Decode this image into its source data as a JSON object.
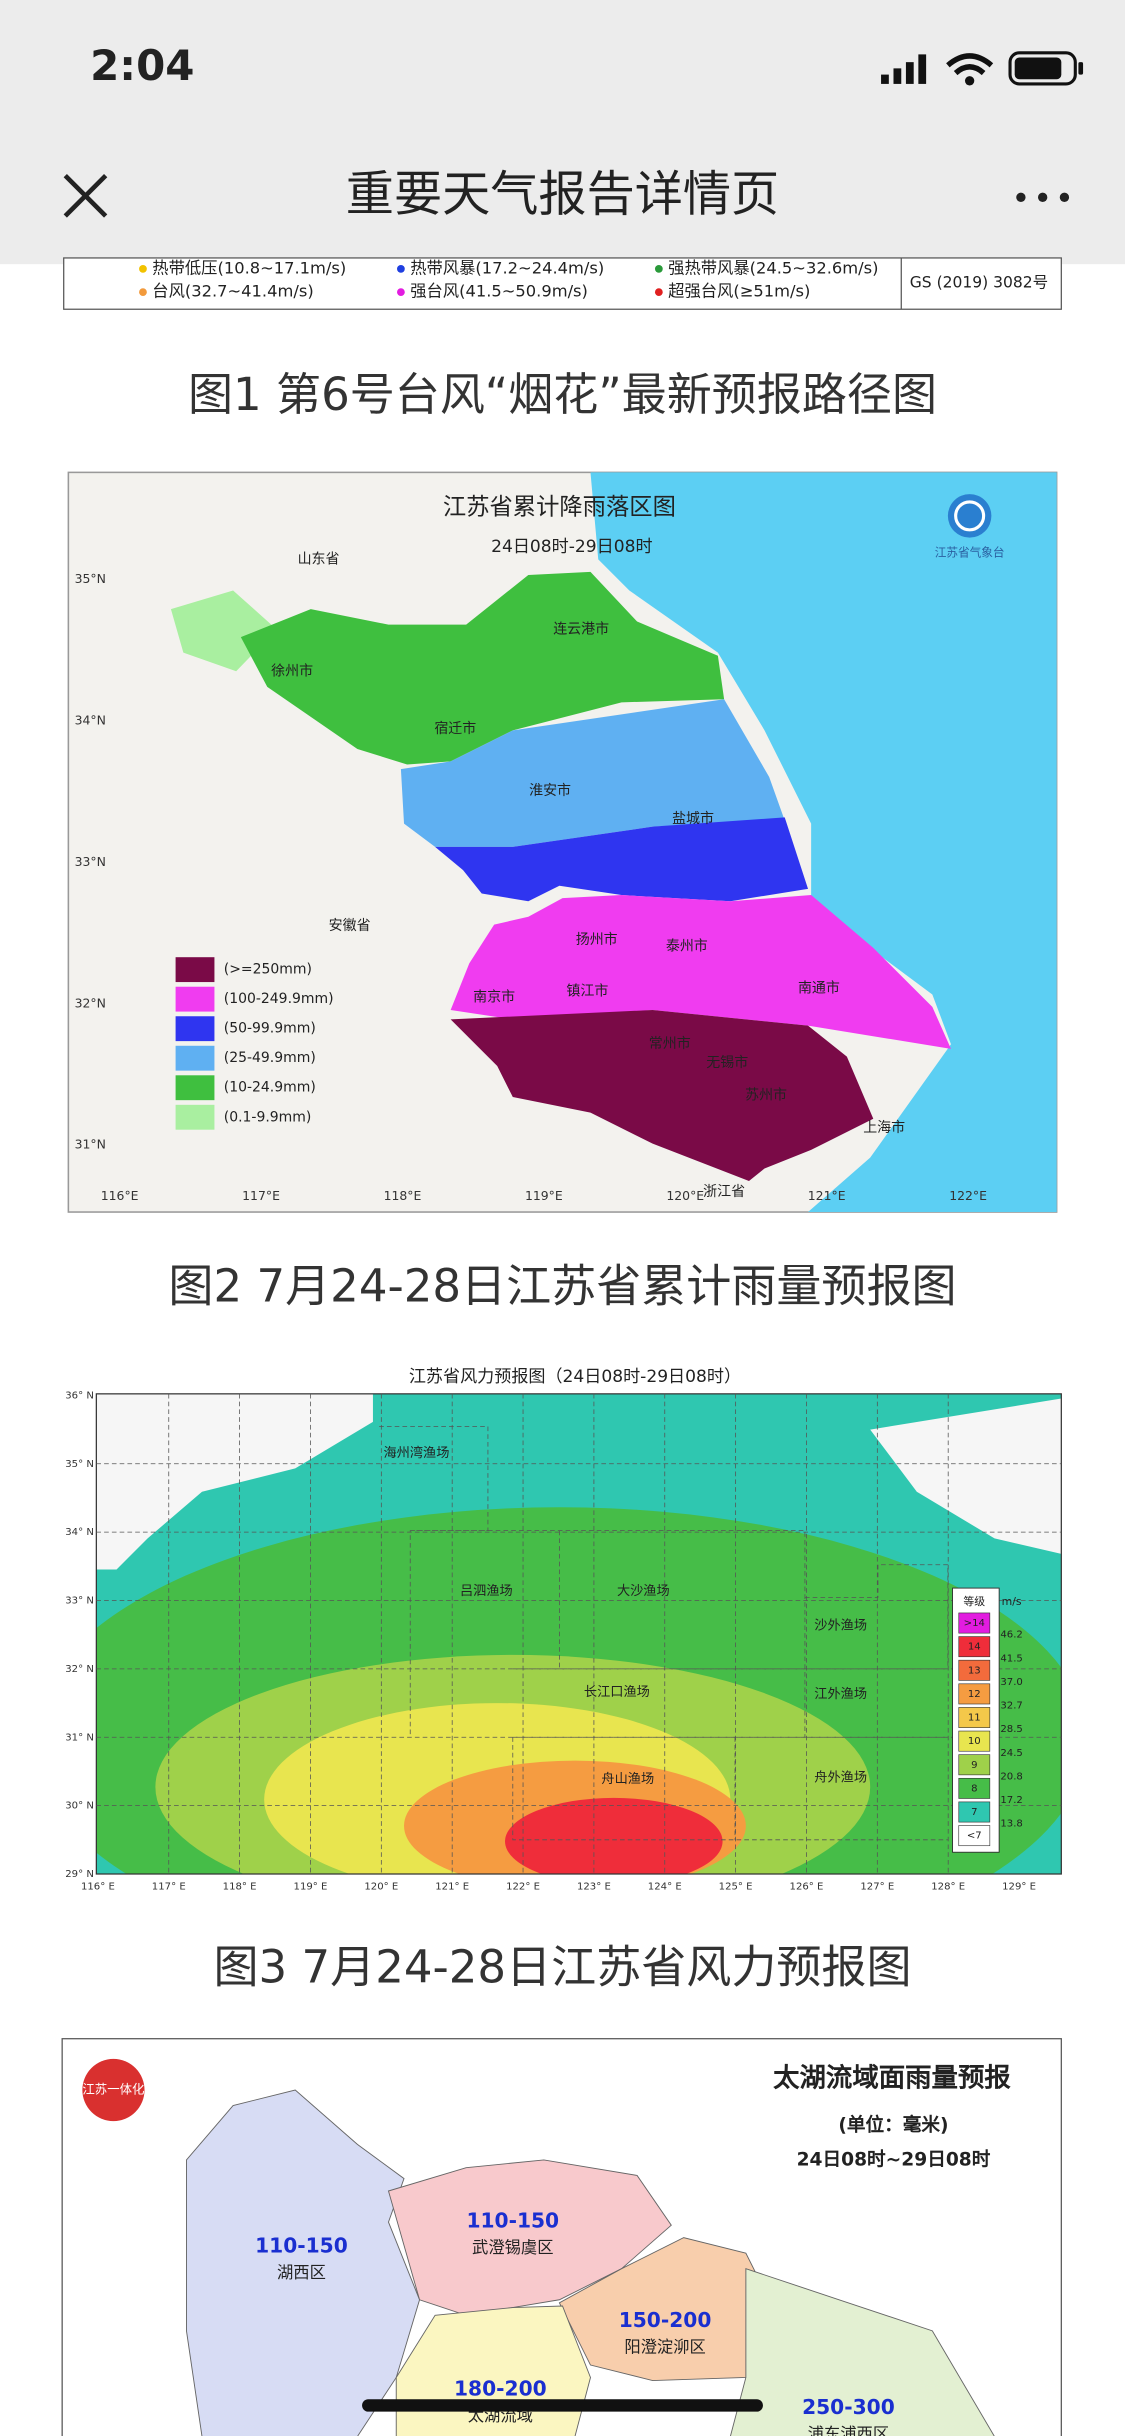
{
  "status_bar": {
    "time": "2:04"
  },
  "nav": {
    "title": "重要天气报告详情页"
  },
  "figure1": {
    "legend": [
      {
        "label": "热带低压(10.8~17.1m/s)",
        "color": "#f2c200"
      },
      {
        "label": "热带风暴(17.2~24.4m/s)",
        "color": "#1f3fe0"
      },
      {
        "label": "强热带风暴(24.5~32.6m/s)",
        "color": "#2a9a3a"
      },
      {
        "label": "台风(32.7~41.4m/s)",
        "color": "#f29a3c"
      },
      {
        "label": "强台风(41.5~50.9m/s)",
        "color": "#e21ce0"
      },
      {
        "label": "超强台风(≥51m/s)",
        "color": "#e02020"
      }
    ],
    "approval": "GS (2019) 3082号",
    "caption": "图1 第6号台风“烟花”最新预报路径图"
  },
  "figure2": {
    "title": "江苏省累计降雨落区图",
    "subtitle": "24日08时-29日08时",
    "logo": "江苏省气象台",
    "legend": [
      {
        "label": "(>=250mm)",
        "color": "#7a0a47"
      },
      {
        "label": "(100-249.9mm)",
        "color": "#f03cf0"
      },
      {
        "label": "(50-99.9mm)",
        "color": "#2f35f0"
      },
      {
        "label": "(25-49.9mm)",
        "color": "#5fb0f2"
      },
      {
        "label": "(10-24.9mm)",
        "color": "#3fbf3f"
      },
      {
        "label": "(0.1-9.9mm)",
        "color": "#a9efa0"
      }
    ],
    "lat_labels": [
      "35°N",
      "34°N",
      "33°N",
      "32°N",
      "31°N"
    ],
    "lon_labels": [
      "116°E",
      "117°E",
      "118°E",
      "119°E",
      "120°E",
      "121°E",
      "122°E"
    ],
    "places": [
      "山东省",
      "连云港市",
      "徐州市",
      "宿迁市",
      "淮安市",
      "盐城市",
      "安徽省",
      "扬州市",
      "泰州市",
      "南京市",
      "镇江市",
      "南通市",
      "常州市",
      "无锡市",
      "苏州市",
      "上海市",
      "浙江省"
    ],
    "caption": "图2 7月24-28日江苏省累计雨量预报图"
  },
  "figure3": {
    "title": "江苏省风力预报图（24日08时-29日08时）",
    "lat_labels": [
      "36° N",
      "35° N",
      "34° N",
      "33° N",
      "32° N",
      "31° N",
      "30° N",
      "29° N"
    ],
    "lon_labels": [
      "116° E",
      "117° E",
      "118° E",
      "119° E",
      "120° E",
      "121° E",
      "122° E",
      "123° E",
      "124° E",
      "125° E",
      "126° E",
      "127° E",
      "128° E",
      "129° E"
    ],
    "areas": [
      "海州湾渔场",
      "吕泗渔场",
      "大沙渔场",
      "沙外渔场",
      "长江口渔场",
      "江外渔场",
      "舟山渔场",
      "舟外渔场"
    ],
    "legend_header": [
      "等级",
      "m/s"
    ],
    "levels": [
      {
        "level": ">14",
        "color": "#e21ce0"
      },
      {
        "level": "14",
        "color": "#ef2d3a"
      },
      {
        "level": "13",
        "color": "#f36b3c"
      },
      {
        "level": "12",
        "color": "#f59c41"
      },
      {
        "level": "11",
        "color": "#f4c84a"
      },
      {
        "level": "10",
        "color": "#e8e54f"
      },
      {
        "level": "9",
        "color": "#9fd14a"
      },
      {
        "level": "8",
        "color": "#46bd48"
      },
      {
        "level": "7",
        "color": "#2fc7b0"
      },
      {
        "level": "<7",
        "color": "#ffffff"
      }
    ],
    "speeds": [
      "46.2",
      "41.5",
      "37.0",
      "32.7",
      "28.5",
      "24.5",
      "20.8",
      "17.2",
      "13.8"
    ],
    "caption": "图3 7月24-28日江苏省风力预报图"
  },
  "figure4": {
    "logo": "江苏一体化",
    "title": "太湖流域面雨量预报",
    "unit": "(单位：毫米)",
    "period": "24日08时~29日08时",
    "regions": [
      {
        "range": "110-150",
        "name": "湖西区"
      },
      {
        "range": "110-150",
        "name": "武澄锡虞区"
      },
      {
        "range": "150-200",
        "name": "阳澄淀泖区"
      },
      {
        "range": "180-200",
        "name": "太湖流域"
      },
      {
        "range": "250-300",
        "name": "浦东浦西区"
      }
    ]
  }
}
